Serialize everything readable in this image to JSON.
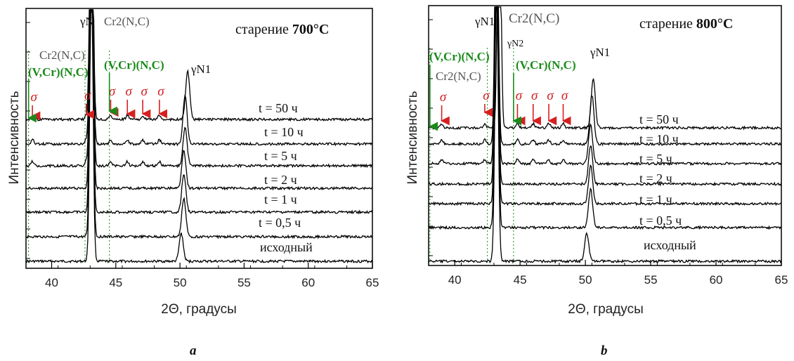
{
  "chart_data": [
    {
      "type": "line",
      "panel_label": "a",
      "title_prefix": "старение ",
      "title_value": "700°C",
      "xlabel": "2Θ, градусы",
      "ylabel": "Интенсивность",
      "xlim": [
        38,
        65
      ],
      "xticks": [
        40,
        45,
        50,
        55,
        60,
        65
      ],
      "tick_labels": [
        "40",
        "45",
        "50",
        "55",
        "60",
        "65"
      ],
      "series": [
        {
          "name": "исходный"
        },
        {
          "name": "t = 0,5 ч"
        },
        {
          "name": "t = 1 ч"
        },
        {
          "name": "t = 2 ч"
        },
        {
          "name": "t = 5 ч"
        },
        {
          "name": "t = 10 ч"
        },
        {
          "name": "t = 50 ч"
        }
      ],
      "annotations": {
        "gamma_n": "γN",
        "gamma_n1": "γN1",
        "cr2nc_top": "Cr2(N,C)",
        "cr2nc_left": "Cr2(N,C)",
        "vcrnc_left": "(V,Cr)(N,C)",
        "vcrnc_right": "(V,Cr)(N,C)",
        "sigma": "σ"
      },
      "sigma_positions": [
        38.5,
        42.7,
        44.6,
        45.9,
        47.1,
        48.4
      ],
      "dotted_lines": [
        38.2,
        42.6,
        44.5
      ],
      "colors": {
        "sigma": "#d62020",
        "vcrnc": "#1a8a1a",
        "cr2nc": "#555555",
        "curve": "#000000"
      }
    },
    {
      "type": "line",
      "panel_label": "b",
      "title_prefix": "старение ",
      "title_value": "800°C",
      "xlabel": "2Θ, градусы",
      "ylabel": "Интенсивность",
      "xlim": [
        38,
        65
      ],
      "xticks": [
        40,
        45,
        50,
        55,
        60,
        65
      ],
      "tick_labels": [
        "40",
        "45",
        "50",
        "55",
        "60",
        "65"
      ],
      "series": [
        {
          "name": "исходный"
        },
        {
          "name": "t = 0,5 ч"
        },
        {
          "name": "t = 1 ч"
        },
        {
          "name": "t = 2 ч"
        },
        {
          "name": "t = 5 ч"
        },
        {
          "name": "t = 10 ч"
        },
        {
          "name": "t = 50 ч"
        }
      ],
      "annotations": {
        "gamma_n1_top": "γN1",
        "gamma_n2": "γN2",
        "gamma_n1": "γN1",
        "cr2nc_top": "Cr2(N,C)",
        "cr2nc_left": "Cr2(N,C)",
        "vcrnc_left": "(V,Cr)(N,C)",
        "vcrnc_right": "(V,Cr)(N,C)",
        "sigma": "σ"
      },
      "sigma_positions": [
        39.0,
        42.3,
        44.8,
        46.0,
        47.2,
        48.3
      ],
      "dotted_lines": [
        38.1,
        42.5,
        44.5
      ],
      "colors": {
        "sigma": "#d62020",
        "vcrnc": "#1a8a1a",
        "cr2nc": "#555555",
        "curve": "#000000"
      }
    }
  ]
}
